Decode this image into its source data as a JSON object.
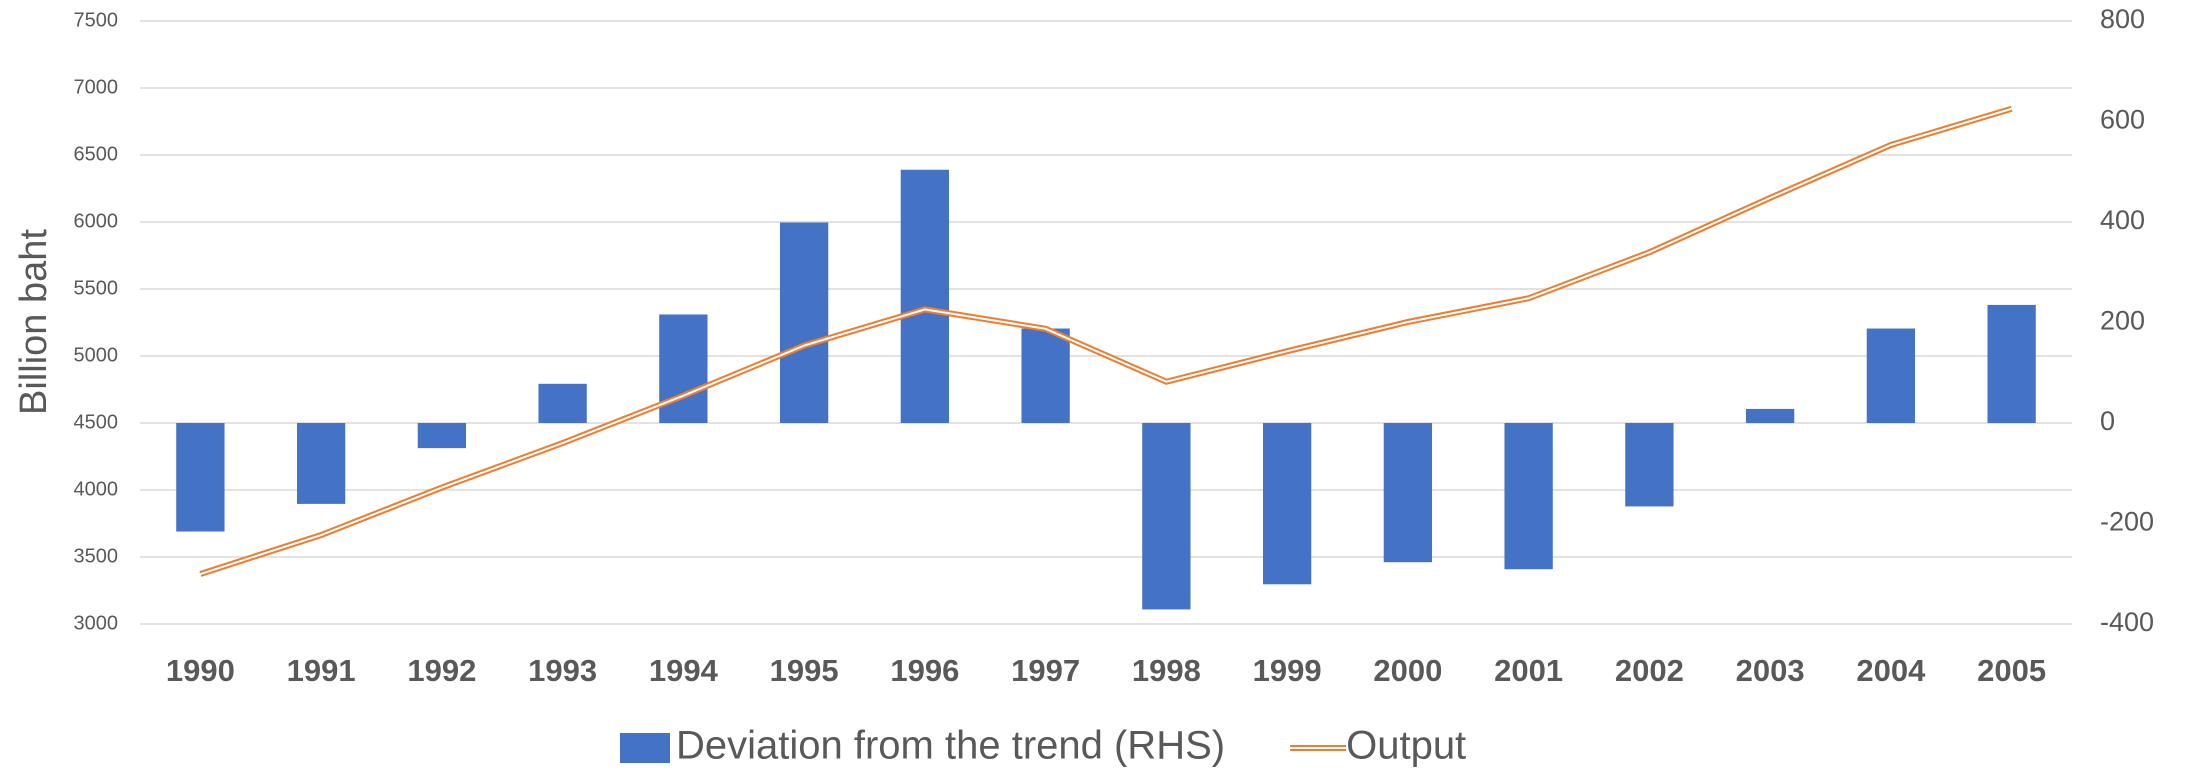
{
  "chart_data": {
    "type": "bar-line",
    "y_label": "Billion baht",
    "categories": [
      "1990",
      "1991",
      "1992",
      "1993",
      "1994",
      "1995",
      "1996",
      "1997",
      "1998",
      "1999",
      "2000",
      "2001",
      "2002",
      "2003",
      "2004",
      "2005"
    ],
    "series": [
      {
        "name": "Deviation from the trend (RHS)",
        "type": "bar",
        "axis": "y2",
        "color": "#4472c4",
        "values": [
          -216,
          -161,
          -50,
          78,
          216,
          399,
          504,
          188,
          -371,
          -321,
          -277,
          -291,
          -166,
          28,
          188,
          235
        ]
      },
      {
        "name": "Output",
        "type": "line",
        "axis": "y",
        "color": "#ed7d31",
        "values": [
          3373,
          3664,
          4018,
          4350,
          4704,
          5078,
          5348,
          5203,
          4808,
          5036,
          5254,
          5431,
          5774,
          6180,
          6575,
          6845
        ]
      }
    ],
    "ylim": [
      3000,
      7500
    ],
    "yticks": [
      3000,
      3500,
      4000,
      4500,
      5000,
      5500,
      6000,
      6500,
      7000,
      7500
    ],
    "y2lim": [
      -400,
      800
    ],
    "y2ticks": [
      -400,
      -200,
      0,
      200,
      400,
      600,
      800
    ],
    "grid": true,
    "legend": "bottom"
  }
}
